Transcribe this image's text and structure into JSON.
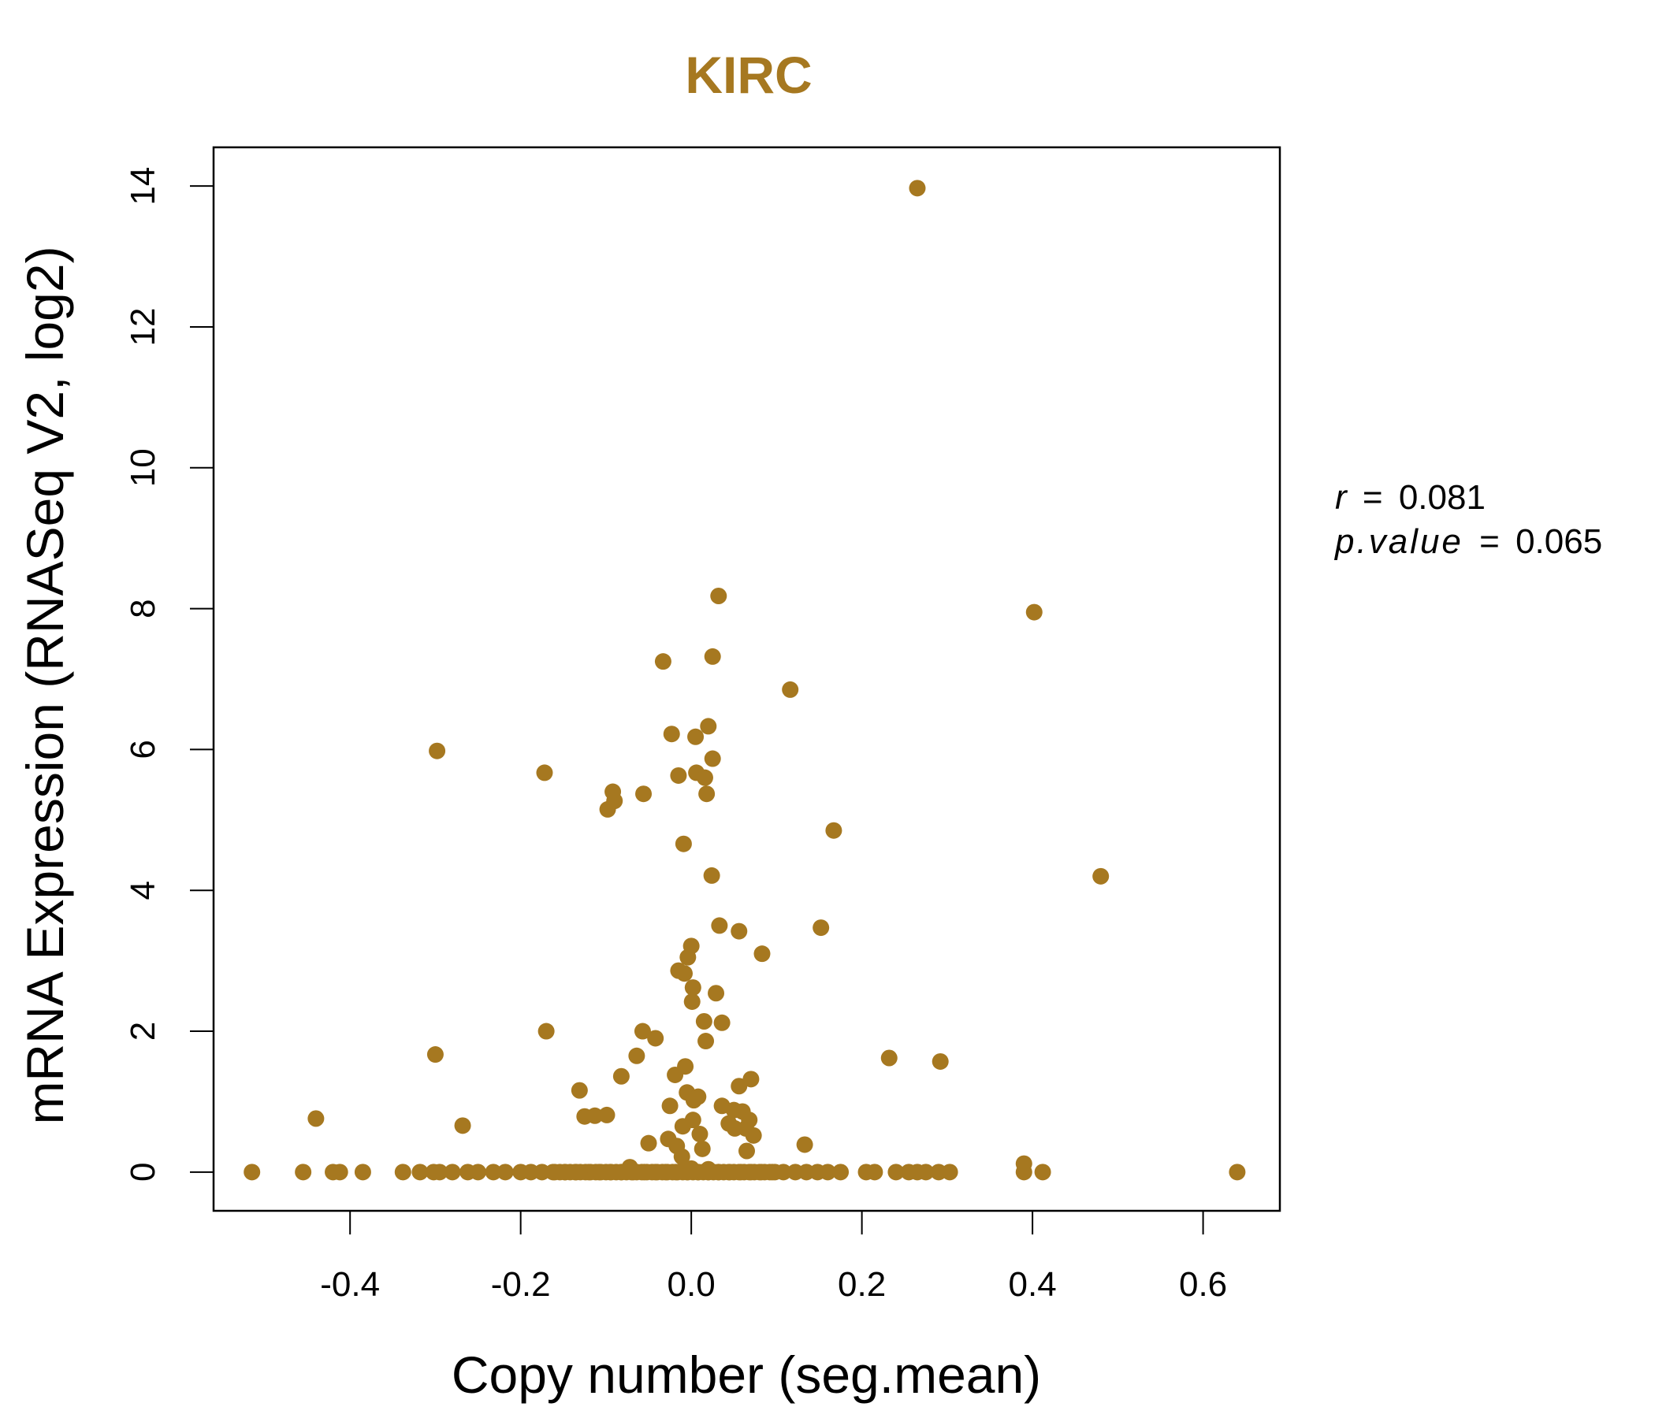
{
  "chart_data": {
    "type": "scatter",
    "title": "KIRC",
    "xlabel": "Copy number (seg.mean)",
    "ylabel": "mRNA Expression (RNASeq V2, log2)",
    "xlim": [
      -0.56,
      0.69
    ],
    "ylim": [
      -0.55,
      14.55
    ],
    "x_ticks": [
      -0.4,
      -0.2,
      0.0,
      0.2,
      0.4,
      0.6
    ],
    "x_tick_labels": [
      "-0.4",
      "-0.2",
      "0.0",
      "0.2",
      "0.4",
      "0.6"
    ],
    "y_ticks": [
      0,
      2,
      4,
      6,
      8,
      10,
      12,
      14
    ],
    "y_tick_labels": [
      "0",
      "2",
      "4",
      "6",
      "8",
      "10",
      "12",
      "14"
    ],
    "grid": false,
    "point_color": "#A67820",
    "stats": {
      "r_label": "r",
      "r_value": "0.081",
      "p_label": "p.value",
      "p_value": "0.065",
      "equals": "="
    },
    "points": {
      "x": [
        0.265,
        0.032,
        0.402,
        0.025,
        -0.033,
        0.116,
        0.02,
        -0.023,
        0.005,
        -0.298,
        0.025,
        -0.172,
        0.006,
        -0.015,
        0.016,
        -0.092,
        -0.056,
        0.018,
        -0.09,
        -0.098,
        0.167,
        -0.009,
        0.48,
        0.024,
        0.033,
        0.056,
        0.152,
        0.0,
        0.083,
        -0.004,
        -0.015,
        -0.008,
        0.002,
        0.029,
        0.001,
        0.036,
        -0.17,
        0.015,
        -0.057,
        -0.042,
        0.017,
        0.232,
        -0.3,
        -0.064,
        0.292,
        -0.007,
        -0.019,
        -0.082,
        0.07,
        0.056,
        -0.131,
        -0.005,
        0.008,
        0.003,
        -0.025,
        0.036,
        0.05,
        0.06,
        -0.125,
        -0.113,
        -0.099,
        -0.44,
        0.002,
        0.068,
        0.044,
        -0.01,
        0.051,
        0.01,
        0.064,
        0.073,
        -0.268,
        -0.027,
        -0.05,
        0.133,
        -0.017,
        0.013,
        0.065,
        -0.011,
        0.39,
        -0.072,
        0.0,
        0.02,
        -0.515,
        -0.455,
        -0.42,
        -0.412,
        -0.385,
        -0.338,
        -0.318,
        -0.302,
        -0.295,
        -0.28,
        -0.262,
        -0.25,
        -0.232,
        -0.218,
        -0.2,
        -0.188,
        -0.175,
        -0.162,
        -0.148,
        -0.135,
        -0.12,
        -0.108,
        -0.095,
        -0.082,
        -0.068,
        -0.055,
        -0.042,
        -0.03,
        -0.018,
        -0.005,
        0.008,
        0.02,
        0.032,
        0.045,
        0.058,
        0.07,
        0.082,
        0.095,
        0.108,
        0.122,
        0.135,
        0.148,
        0.16,
        0.175,
        0.205,
        0.215,
        0.24,
        0.255,
        0.265,
        0.275,
        0.29,
        0.303,
        0.39,
        0.412,
        0.64
      ],
      "y": [
        13.97,
        8.18,
        7.95,
        7.32,
        7.25,
        6.85,
        6.33,
        6.22,
        6.18,
        5.98,
        5.87,
        5.67,
        5.67,
        5.63,
        5.6,
        5.4,
        5.37,
        5.37,
        5.27,
        5.15,
        4.85,
        4.66,
        4.2,
        4.21,
        3.5,
        3.42,
        3.47,
        3.21,
        3.1,
        3.05,
        2.86,
        2.82,
        2.62,
        2.54,
        2.42,
        2.12,
        2.0,
        2.14,
        2.0,
        1.9,
        1.86,
        1.62,
        1.67,
        1.65,
        1.57,
        1.5,
        1.38,
        1.36,
        1.32,
        1.22,
        1.16,
        1.13,
        1.07,
        1.02,
        0.94,
        0.94,
        0.88,
        0.86,
        0.79,
        0.8,
        0.81,
        0.76,
        0.74,
        0.74,
        0.69,
        0.65,
        0.62,
        0.54,
        0.62,
        0.52,
        0.66,
        0.47,
        0.41,
        0.39,
        0.37,
        0.33,
        0.3,
        0.22,
        0.12,
        0.07,
        0.05,
        0.04,
        0,
        0,
        0,
        0,
        0,
        0,
        0,
        0,
        0,
        0,
        0,
        0,
        0,
        0,
        0,
        0,
        0,
        0,
        0,
        0,
        0,
        0,
        0,
        0,
        0,
        0,
        0,
        0,
        0,
        0,
        0,
        0,
        0,
        0,
        0,
        0,
        0,
        0,
        0,
        0,
        0,
        0,
        0,
        0,
        0,
        0,
        0,
        0,
        0,
        0,
        0,
        0,
        0,
        0,
        0
      ]
    }
  }
}
